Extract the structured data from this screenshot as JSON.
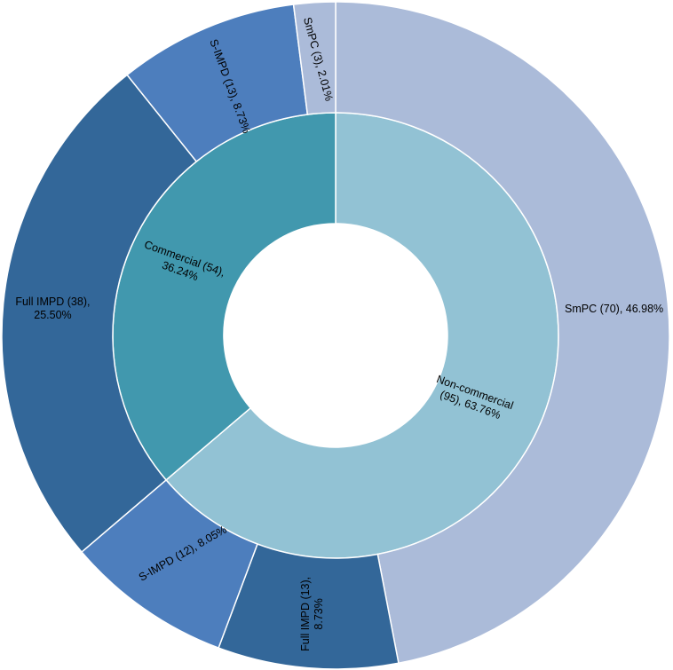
{
  "chart_data": {
    "type": "donut",
    "title": "",
    "inner_ring": [
      {
        "name": "Non-commercial",
        "count": 95,
        "percent": 63.76,
        "color": "#92c2d4",
        "label_lines": [
          "Non-commercial",
          "(95), 63.76%"
        ]
      },
      {
        "name": "Commercial",
        "count": 54,
        "percent": 36.24,
        "color": "#4198ae",
        "label_lines": [
          "Commercial (54),",
          "36.24%"
        ]
      }
    ],
    "outer_ring": [
      {
        "name": "SmPC",
        "group": "Non-commercial",
        "count": 70,
        "percent": 46.98,
        "color": "#abbbd9",
        "label_lines": [
          "SmPC (70), 46.98%"
        ]
      },
      {
        "name": "Full IMPD",
        "group": "Non-commercial",
        "count": 13,
        "percent": 8.73,
        "color": "#336799",
        "label_lines": [
          "Full IMPD (13),",
          "8.73%"
        ]
      },
      {
        "name": "S-IMPD",
        "group": "Non-commercial",
        "count": 12,
        "percent": 8.05,
        "color": "#4d7ebd",
        "label_lines": [
          "S-IMPD (12), 8.05%"
        ]
      },
      {
        "name": "Full IMPD",
        "group": "Commercial",
        "count": 38,
        "percent": 25.5,
        "color": "#336799",
        "label_lines": [
          "Full IMPD (38),",
          "25.50%"
        ]
      },
      {
        "name": "S-IMPD",
        "group": "Commercial",
        "count": 13,
        "percent": 8.73,
        "color": "#4d7ebd",
        "label_lines": [
          "S-IMPD (13), 8.73%"
        ]
      },
      {
        "name": "SmPC",
        "group": "Commercial",
        "count": 3,
        "percent": 2.01,
        "color": "#abbbd9",
        "label_lines": [
          "SmPC (3), 2.01%"
        ]
      }
    ],
    "legend": "none",
    "grid": false
  }
}
